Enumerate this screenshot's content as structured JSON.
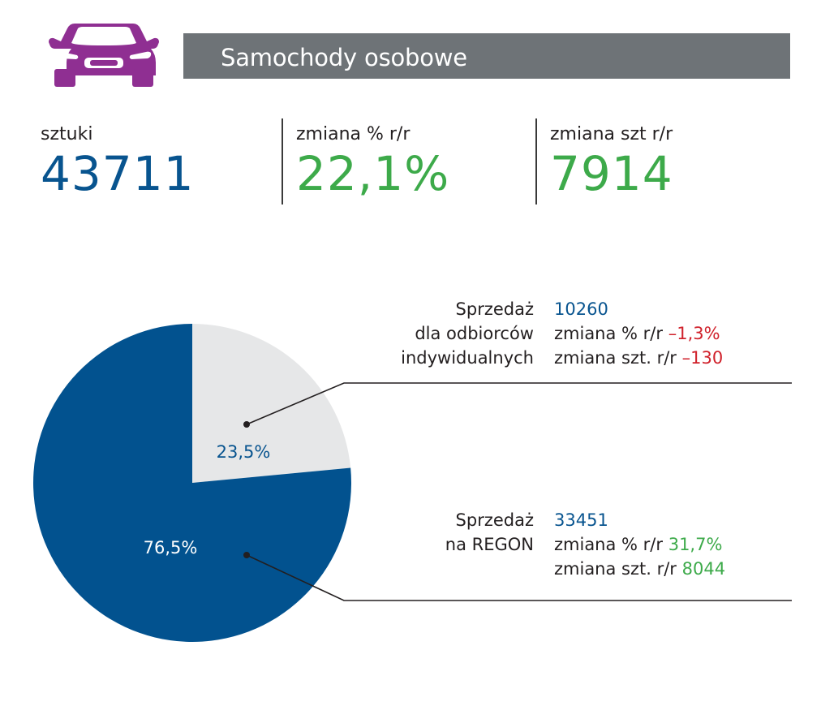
{
  "header": {
    "title": "Samochody osobowe",
    "icon": "car-icon",
    "icon_color": "#8f2f92",
    "bar_color": "#6e7377"
  },
  "stats": [
    {
      "label": "sztuki",
      "value": "43711",
      "color": "#08548f"
    },
    {
      "label": "zmiana % r/r",
      "value": "22,1%",
      "color": "#3daa4a"
    },
    {
      "label": "zmiana szt r/r",
      "value": "7914",
      "color": "#3daa4a"
    }
  ],
  "chart_data": {
    "type": "pie",
    "series": [
      {
        "label": "23,5%",
        "value": 23.5,
        "color": "#e6e7e8",
        "label_color": "#08548f"
      },
      {
        "label": "76,5%",
        "value": 76.5,
        "color": "#02528f",
        "label_color": "#ffffff"
      }
    ]
  },
  "segments": [
    {
      "name_lines": [
        "Sprzedaż",
        "dla odbiorców",
        "indywidualnych"
      ],
      "value": "10260",
      "change_pct_label": "zmiana % r/r",
      "change_pct": "–1,3%",
      "change_pct_color": "#d0212b",
      "change_units_label": "zmiana szt. r/r",
      "change_units": "–130",
      "change_units_color": "#d0212b"
    },
    {
      "name_lines": [
        "Sprzedaż",
        "na REGON"
      ],
      "value": "33451",
      "change_pct_label": "zmiana % r/r",
      "change_pct": "31,7%",
      "change_pct_color": "#3daa4a",
      "change_units_label": "zmiana szt. r/r",
      "change_units": "8044",
      "change_units_color": "#3daa4a"
    }
  ]
}
